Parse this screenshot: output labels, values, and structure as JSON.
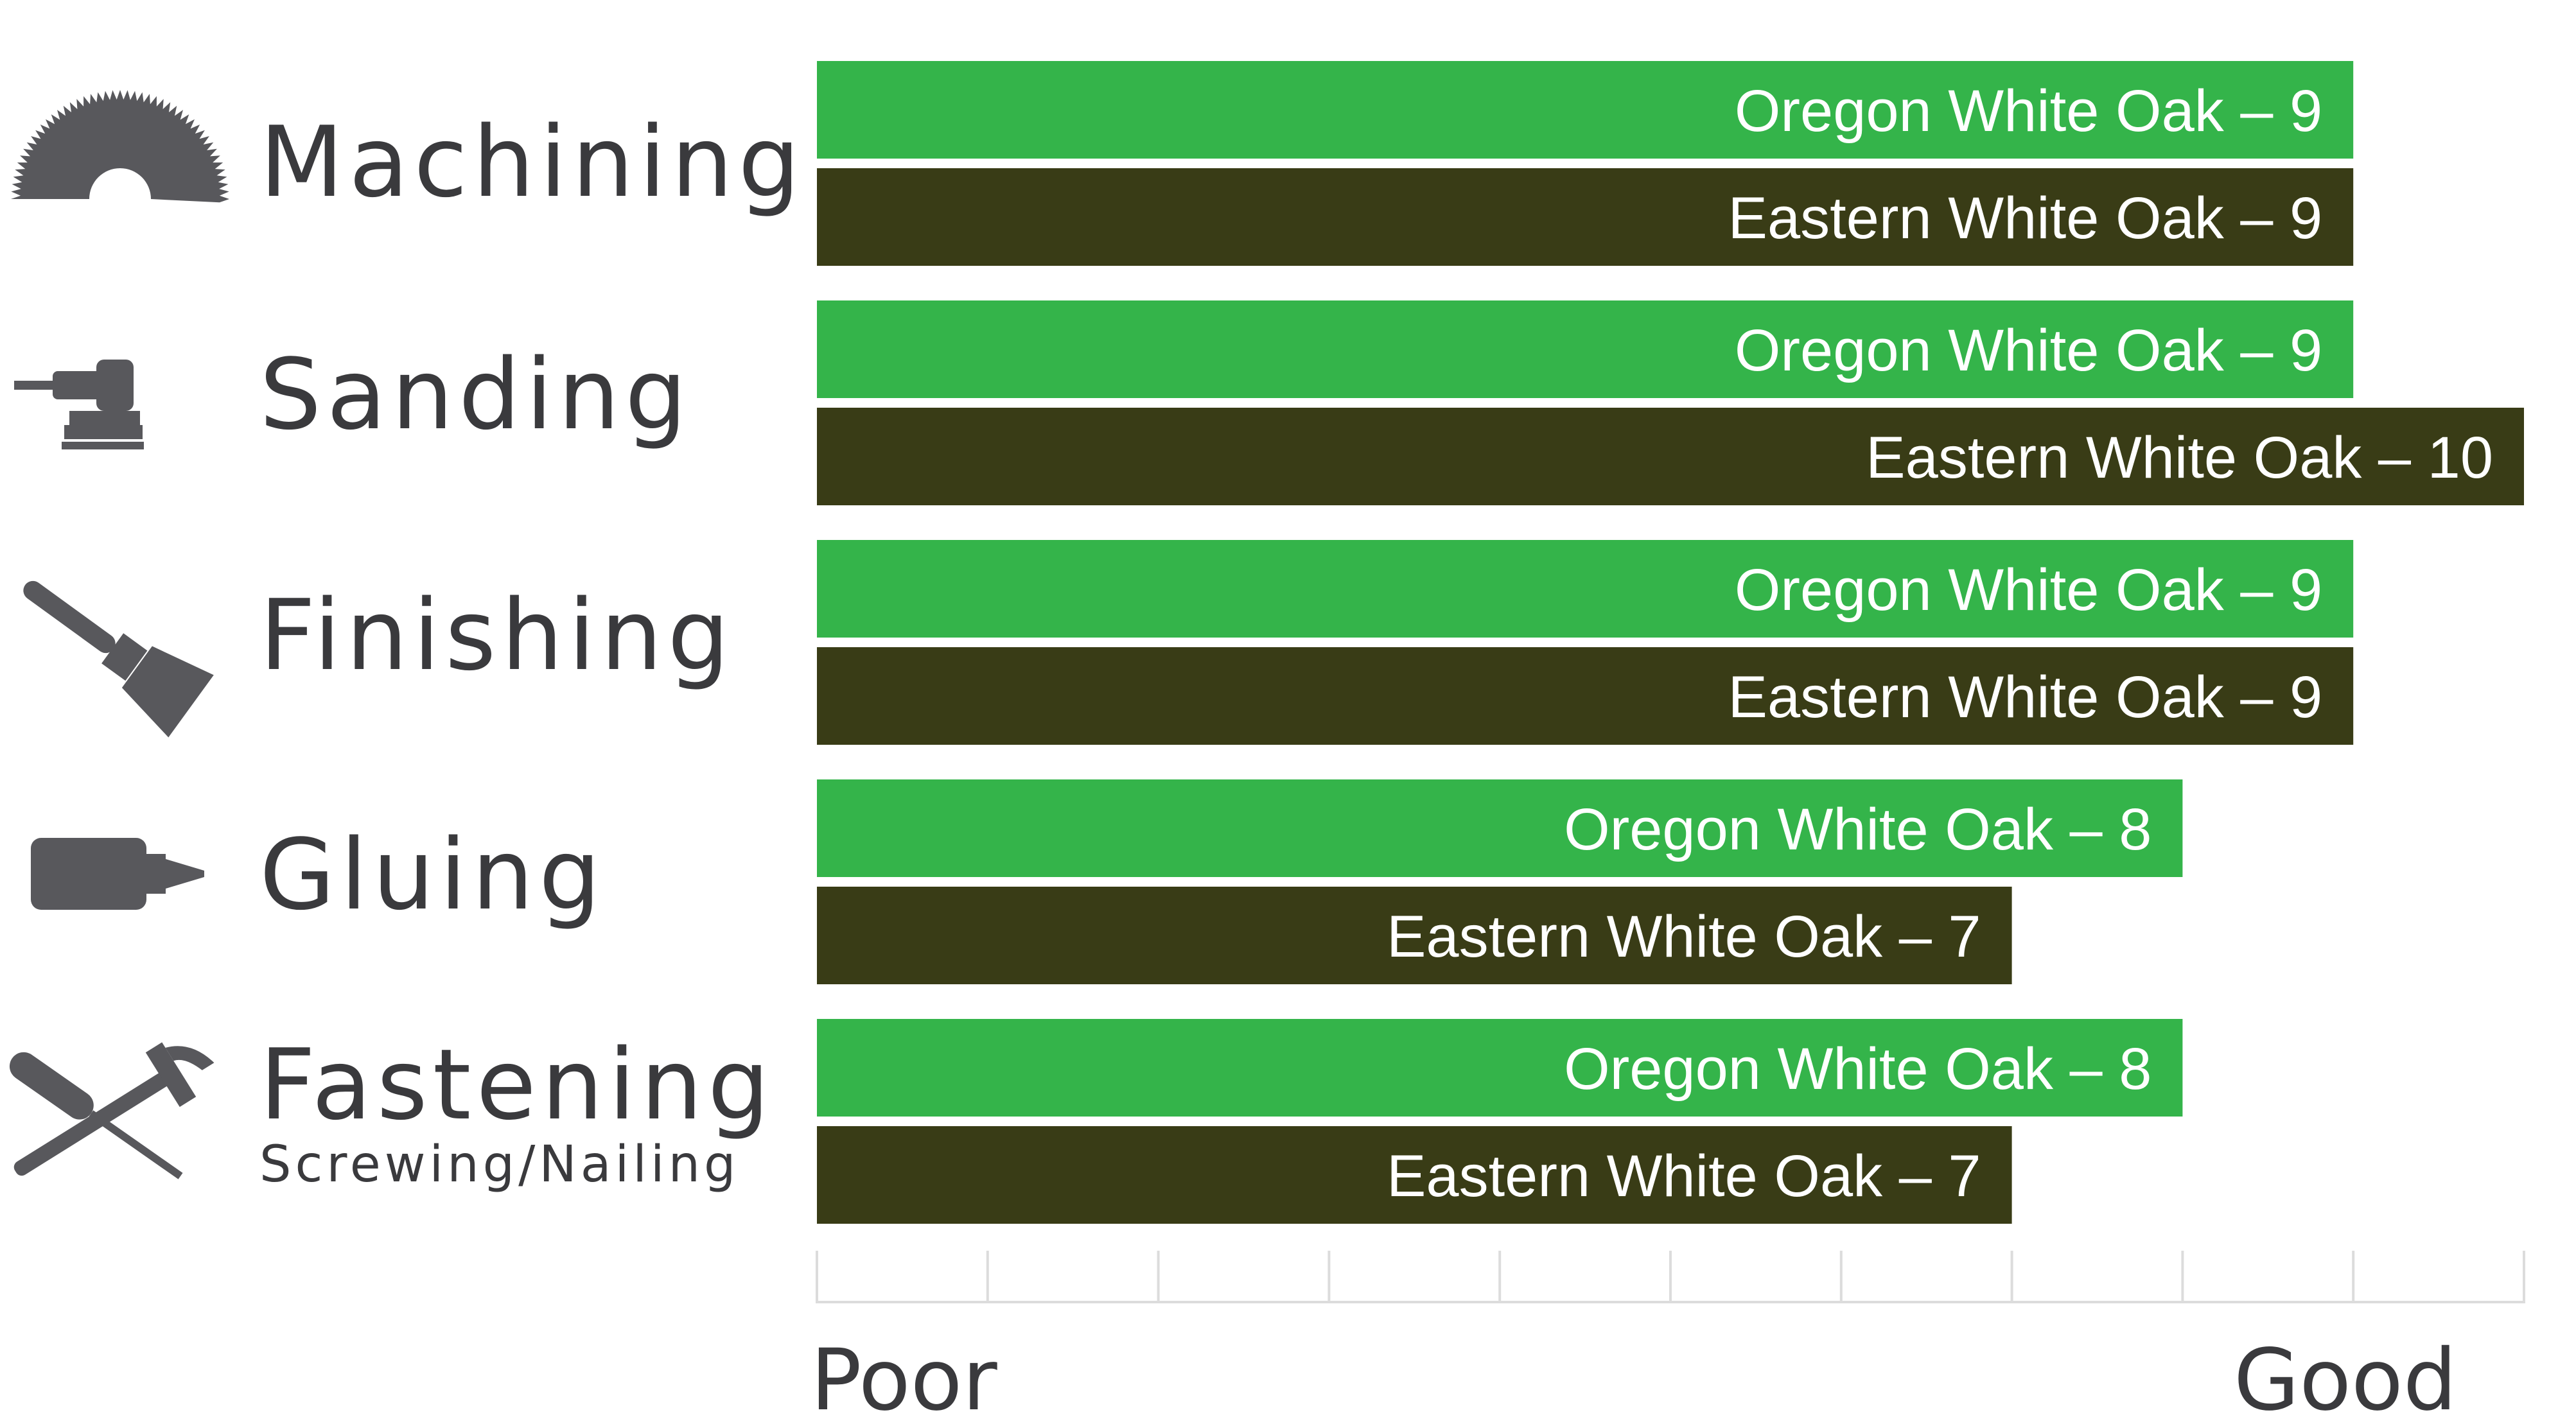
{
  "chart_data": {
    "type": "bar",
    "orientation": "horizontal",
    "categories": [
      {
        "label": "Machining",
        "sublabel": "",
        "icon": "saw-blade-icon"
      },
      {
        "label": "Sanding",
        "sublabel": "",
        "icon": "orbital-sander-icon"
      },
      {
        "label": "Finishing",
        "sublabel": "",
        "icon": "paintbrush-icon"
      },
      {
        "label": "Gluing",
        "sublabel": "",
        "icon": "glue-bottle-icon"
      },
      {
        "label": "Fastening",
        "sublabel": "Screwing/Nailing",
        "icon": "screwdriver-hammer-icon"
      }
    ],
    "series": [
      {
        "name": "Oregon White Oak",
        "color": "#34b44a",
        "values": [
          9,
          9,
          9,
          8,
          8
        ],
        "labels": [
          "Oregon White Oak – 9",
          "Oregon White Oak – 9",
          "Oregon White Oak – 9",
          "Oregon White Oak – 8",
          "Oregon White Oak – 8"
        ]
      },
      {
        "name": "Eastern White Oak",
        "color": "#393c16",
        "values": [
          9,
          10,
          9,
          7,
          7
        ],
        "labels": [
          "Eastern White Oak – 9",
          "Eastern White Oak – 10",
          "Eastern White Oak – 9",
          "Eastern White Oak – 7",
          "Eastern White Oak – 7"
        ]
      }
    ],
    "xlim": [
      0,
      10
    ],
    "ticks": [
      0,
      1,
      2,
      3,
      4,
      5,
      6,
      7,
      8,
      9,
      10
    ],
    "axis_labels": {
      "low": "Poor",
      "high": "Good"
    },
    "grid": true,
    "grid_color": "#dcdcdc",
    "text_color": "#3a3a3d"
  }
}
